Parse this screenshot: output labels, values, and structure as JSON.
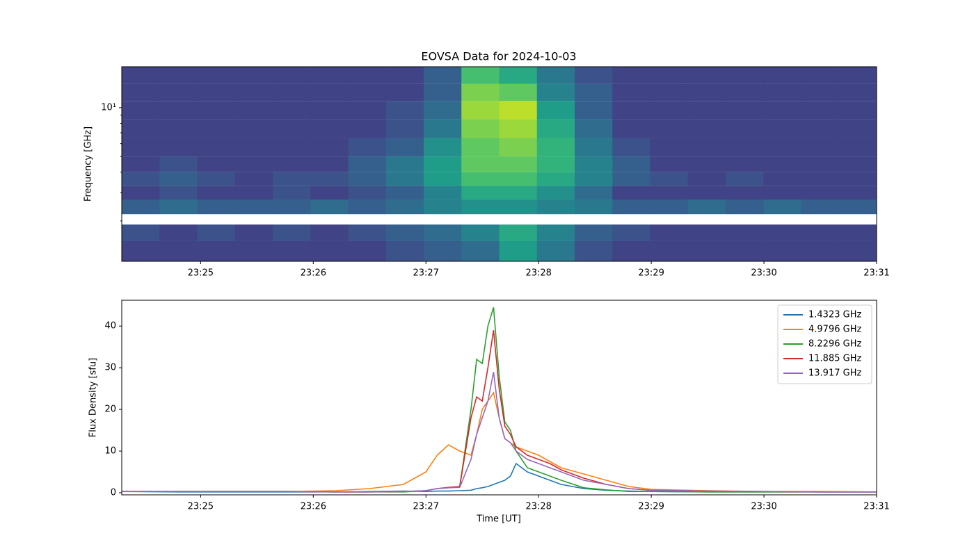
{
  "chart_data": [
    {
      "type": "heatmap",
      "title": "EOVSA Data for 2024-10-03",
      "ylabel": "Frequency [GHz]",
      "colormap": "viridis",
      "ylog": true,
      "x_edges": [
        24.3,
        24.635,
        24.97,
        25.305,
        25.64,
        25.975,
        26.31,
        26.645,
        26.98,
        27.315,
        27.65,
        27.985,
        28.32,
        28.655,
        28.99,
        29.325,
        29.66,
        29.995,
        30.33,
        30.665,
        31.0
      ],
      "y_edges": [
        1.126,
        1.5,
        1.9,
        2.2,
        2.7,
        3.3,
        4.0,
        5.0,
        6.5,
        8.5,
        11,
        14,
        17.9
      ],
      "z": [
        [
          0.2,
          0.2,
          0.2,
          0.2,
          0.2,
          0.2,
          0.2,
          0.25,
          0.3,
          0.35,
          0.55,
          0.4,
          0.25,
          0.2,
          0.2,
          0.2,
          0.2,
          0.2,
          0.2,
          0.2
        ],
        [
          0.25,
          0.2,
          0.25,
          0.2,
          0.25,
          0.2,
          0.25,
          0.3,
          0.35,
          0.45,
          0.6,
          0.45,
          0.3,
          0.25,
          0.2,
          0.2,
          0.2,
          0.2,
          0.2,
          0.2
        ],
        [
          null,
          null,
          null,
          null,
          null,
          null,
          null,
          null,
          null,
          null,
          null,
          null,
          null,
          null,
          null,
          null,
          null,
          null,
          null,
          null
        ],
        [
          0.3,
          0.35,
          0.3,
          0.3,
          0.3,
          0.35,
          0.3,
          0.35,
          0.45,
          0.5,
          0.5,
          0.45,
          0.4,
          0.3,
          0.3,
          0.35,
          0.3,
          0.35,
          0.3,
          0.3
        ],
        [
          0.2,
          0.25,
          0.2,
          0.2,
          0.25,
          0.2,
          0.25,
          0.3,
          0.45,
          0.6,
          0.6,
          0.5,
          0.35,
          0.2,
          0.2,
          0.2,
          0.2,
          0.2,
          0.2,
          0.2
        ],
        [
          0.25,
          0.3,
          0.25,
          0.2,
          0.25,
          0.25,
          0.3,
          0.4,
          0.55,
          0.7,
          0.7,
          0.6,
          0.45,
          0.3,
          0.25,
          0.2,
          0.25,
          0.2,
          0.2,
          0.2
        ],
        [
          0.2,
          0.25,
          0.2,
          0.2,
          0.2,
          0.2,
          0.3,
          0.4,
          0.55,
          0.75,
          0.75,
          0.65,
          0.45,
          0.3,
          0.2,
          0.2,
          0.2,
          0.2,
          0.2,
          0.2
        ],
        [
          0.2,
          0.2,
          0.2,
          0.2,
          0.2,
          0.2,
          0.25,
          0.3,
          0.5,
          0.75,
          0.8,
          0.65,
          0.4,
          0.25,
          0.2,
          0.2,
          0.2,
          0.2,
          0.2,
          0.2
        ],
        [
          0.2,
          0.2,
          0.2,
          0.2,
          0.2,
          0.2,
          0.2,
          0.25,
          0.4,
          0.8,
          0.85,
          0.6,
          0.35,
          0.2,
          0.2,
          0.2,
          0.2,
          0.2,
          0.2,
          0.2
        ],
        [
          0.2,
          0.2,
          0.2,
          0.2,
          0.2,
          0.2,
          0.2,
          0.25,
          0.35,
          0.85,
          0.9,
          0.55,
          0.3,
          0.2,
          0.2,
          0.2,
          0.2,
          0.2,
          0.2,
          0.2
        ],
        [
          0.2,
          0.2,
          0.2,
          0.2,
          0.2,
          0.2,
          0.2,
          0.2,
          0.3,
          0.8,
          0.75,
          0.45,
          0.3,
          0.2,
          0.2,
          0.2,
          0.2,
          0.2,
          0.2,
          0.2
        ],
        [
          0.2,
          0.2,
          0.2,
          0.2,
          0.2,
          0.2,
          0.2,
          0.2,
          0.3,
          0.7,
          0.6,
          0.4,
          0.25,
          0.2,
          0.2,
          0.2,
          0.2,
          0.2,
          0.2,
          0.2
        ]
      ],
      "xlim": [
        24.3,
        31.0
      ],
      "xticks": [
        {
          "value": 25,
          "label": "23:25"
        },
        {
          "value": 26,
          "label": "23:26"
        },
        {
          "value": 27,
          "label": "23:27"
        },
        {
          "value": 28,
          "label": "23:28"
        },
        {
          "value": 29,
          "label": "23:29"
        },
        {
          "value": 30,
          "label": "23:30"
        },
        {
          "value": 31,
          "label": "23:31"
        }
      ],
      "ylim": [
        1.126,
        17.9
      ],
      "yticks": [
        {
          "value": 10,
          "label": "10¹"
        }
      ],
      "yminorticks": [
        2,
        3,
        4,
        5,
        6,
        7,
        8,
        9
      ]
    },
    {
      "type": "line",
      "xlabel": "Time [UT]",
      "ylabel": "Flux Density [sfu]",
      "legend": "upper right",
      "x": [
        24.3,
        24.8,
        25.3,
        25.8,
        26.2,
        26.5,
        26.8,
        27.0,
        27.1,
        27.2,
        27.3,
        27.4,
        27.45,
        27.5,
        27.55,
        27.6,
        27.65,
        27.7,
        27.75,
        27.8,
        27.9,
        28.0,
        28.1,
        28.2,
        28.4,
        28.6,
        28.8,
        29.0,
        29.5,
        30.0,
        30.5,
        31.0
      ],
      "series": [
        {
          "name": "1.4323 GHz",
          "color": "#1f77b4",
          "values": [
            0.3,
            0.2,
            0.2,
            0.2,
            0.2,
            0.3,
            0.4,
            0.3,
            0.4,
            0.4,
            0.5,
            0.6,
            1.0,
            1.2,
            1.5,
            2.0,
            2.5,
            3,
            4,
            7,
            5,
            4,
            3,
            2,
            1,
            0.6,
            0.4,
            0.3,
            0.2,
            0.2,
            0.2,
            0.2
          ]
        },
        {
          "name": "4.9796 GHz",
          "color": "#ff7f0e",
          "values": [
            0.3,
            0.3,
            0.3,
            0.3,
            0.5,
            1,
            2,
            5,
            9,
            11.5,
            10,
            9,
            14,
            20,
            22,
            24,
            18,
            13,
            12,
            11,
            10,
            9,
            7.5,
            6,
            4.5,
            3,
            1.5,
            0.8,
            0.5,
            0.3,
            0.3,
            0.2
          ]
        },
        {
          "name": "8.2296 GHz",
          "color": "#2ca02c",
          "values": [
            0.3,
            0.3,
            0.3,
            0.3,
            0.2,
            0.2,
            0.2,
            0.5,
            1,
            1.2,
            1.5,
            20,
            32,
            31,
            40,
            44.5,
            28,
            17,
            15,
            10,
            6,
            5,
            4,
            3,
            1.2,
            0.7,
            0.3,
            0.3,
            0.2,
            0.2,
            0.2,
            0.2
          ]
        },
        {
          "name": "11.885 GHz",
          "color": "#d62728",
          "values": [
            0.3,
            0.3,
            0.3,
            0.3,
            0.2,
            0.2,
            0.3,
            0.5,
            1,
            1.3,
            1.5,
            18,
            23,
            22,
            30,
            39,
            25,
            16,
            14,
            11,
            9,
            8,
            7,
            5.5,
            3.5,
            2,
            1,
            0.6,
            0.4,
            0.3,
            0.2,
            0.2
          ]
        },
        {
          "name": "13.917 GHz",
          "color": "#9467bd",
          "values": [
            0.3,
            0.3,
            0.3,
            0.3,
            0.2,
            0.2,
            0.3,
            0.5,
            1,
            1.2,
            1.3,
            8,
            14,
            18,
            22,
            29,
            18,
            13,
            12,
            10,
            8,
            7,
            6,
            5,
            3,
            2,
            1,
            0.6,
            0.4,
            0.3,
            0.2,
            0.2
          ]
        }
      ],
      "xlim": [
        24.3,
        31.0
      ],
      "xticks": [
        {
          "value": 25,
          "label": "23:25"
        },
        {
          "value": 26,
          "label": "23:26"
        },
        {
          "value": 27,
          "label": "23:27"
        },
        {
          "value": 28,
          "label": "23:28"
        },
        {
          "value": 29,
          "label": "23:29"
        },
        {
          "value": 30,
          "label": "23:30"
        },
        {
          "value": 31,
          "label": "23:31"
        }
      ],
      "ylim": [
        -0.5,
        46.2
      ],
      "yticks": [
        0,
        10,
        20,
        30,
        40
      ]
    }
  ]
}
